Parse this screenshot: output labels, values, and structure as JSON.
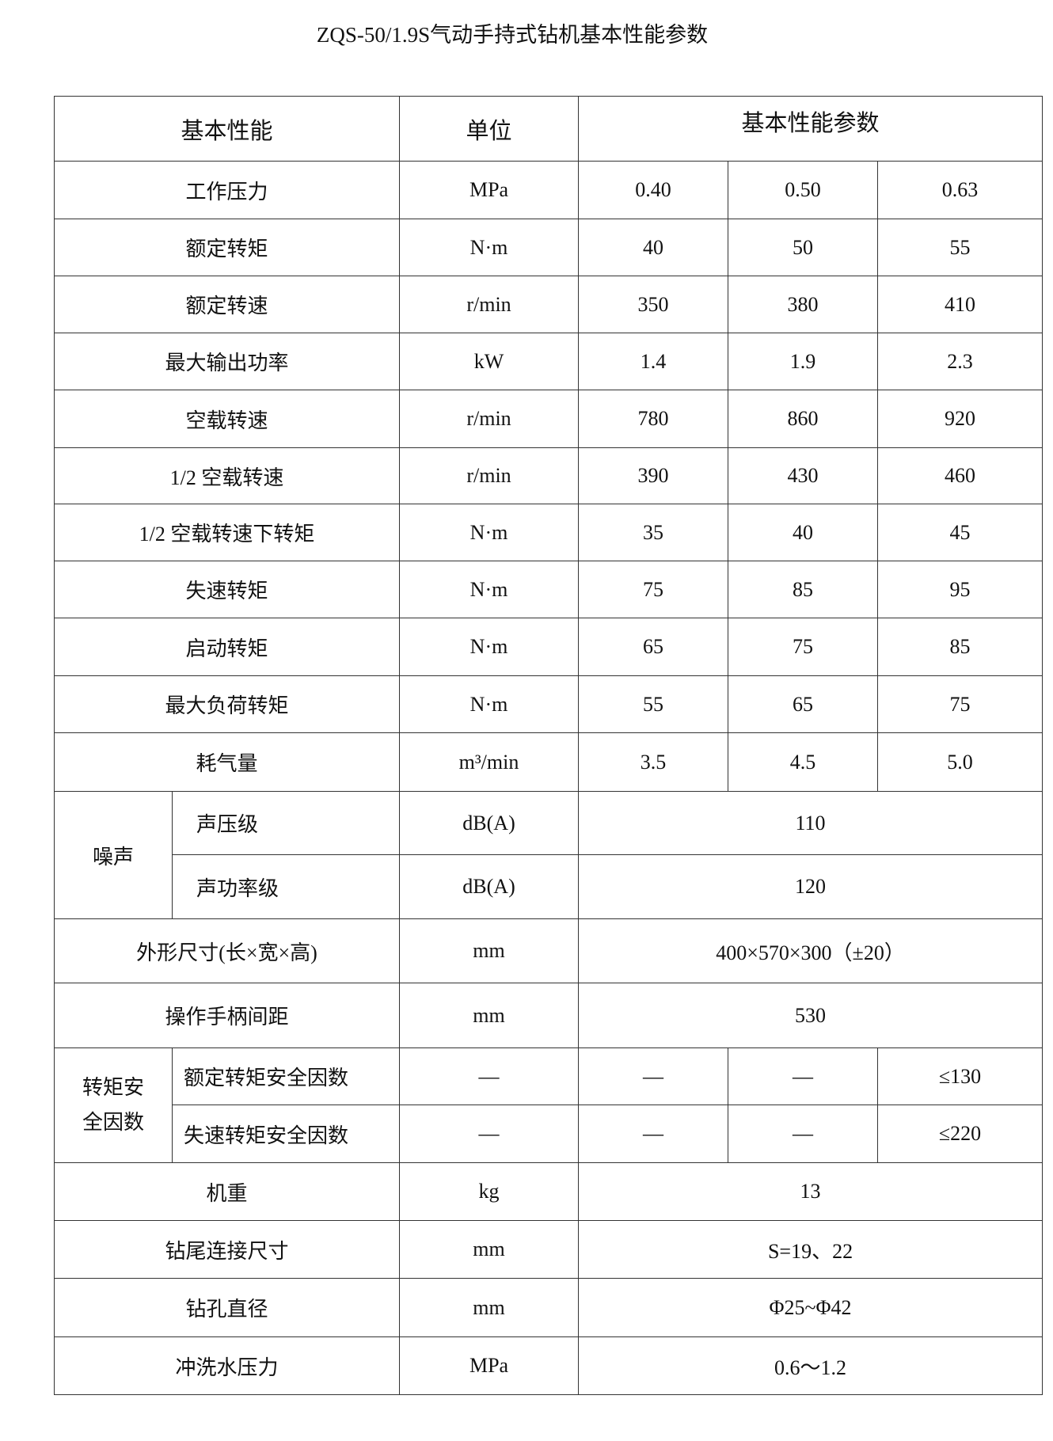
{
  "title": "ZQS-50/1.9S气动手持式钻机基本性能参数",
  "header": {
    "performance": "基本性能",
    "unit": "单位",
    "params": "基本性能参数"
  },
  "rows": [
    {
      "name": "工作压力",
      "unit": "MPa",
      "values": [
        "0.40",
        "0.50",
        "0.63"
      ]
    },
    {
      "name": "额定转矩",
      "unit": "N·m",
      "values": [
        "40",
        "50",
        "55"
      ]
    },
    {
      "name": "额定转速",
      "unit": "r/min",
      "values": [
        "350",
        "380",
        "410"
      ]
    },
    {
      "name": "最大输出功率",
      "unit": "kW",
      "values": [
        "1.4",
        "1.9",
        "2.3"
      ]
    },
    {
      "name": "空载转速",
      "unit": "r/min",
      "values": [
        "780",
        "860",
        "920"
      ]
    },
    {
      "name": "1/2 空载转速",
      "unit": "r/min",
      "values": [
        "390",
        "430",
        "460"
      ]
    },
    {
      "name": "1/2 空载转速下转矩",
      "unit": "N·m",
      "values": [
        "35",
        "40",
        "45"
      ]
    },
    {
      "name": "失速转矩",
      "unit": "N·m",
      "values": [
        "75",
        "85",
        "95"
      ]
    },
    {
      "name": "启动转矩",
      "unit": "N·m",
      "values": [
        "65",
        "75",
        "85"
      ]
    },
    {
      "name": "最大负荷转矩",
      "unit": "N·m",
      "values": [
        "55",
        "65",
        "75"
      ]
    },
    {
      "name": "耗气量",
      "unit": "m³/min",
      "values": [
        "3.5",
        "4.5",
        "5.0"
      ]
    }
  ],
  "noise": {
    "group": "噪声",
    "items": [
      {
        "name": "声压级",
        "unit": "dB(A)",
        "value": "110"
      },
      {
        "name": "声功率级",
        "unit": "dB(A)",
        "value": "120"
      }
    ]
  },
  "dimensions": {
    "name": "外形尺寸(长×宽×高)",
    "unit": "mm",
    "value": "400×570×300（±20）"
  },
  "handle": {
    "name": "操作手柄间距",
    "unit": "mm",
    "value": "530"
  },
  "safety": {
    "group_line1": "转矩安",
    "group_line2": "全因数",
    "items": [
      {
        "name": "额定转矩安全因数",
        "unit": "—",
        "values": [
          "—",
          "—",
          "≤130"
        ]
      },
      {
        "name": "失速转矩安全因数",
        "unit": "—",
        "values": [
          "—",
          "—",
          "≤220"
        ]
      }
    ]
  },
  "tail": [
    {
      "name": "机重",
      "unit": "kg",
      "value": "13"
    },
    {
      "name": "钻尾连接尺寸",
      "unit": "mm",
      "value": "S=19、22"
    },
    {
      "name": "钻孔直径",
      "unit": "mm",
      "value": "Φ25~Φ42"
    },
    {
      "name": "冲洗水压力",
      "unit": "MPa",
      "value": "0.6～1.2"
    }
  ]
}
